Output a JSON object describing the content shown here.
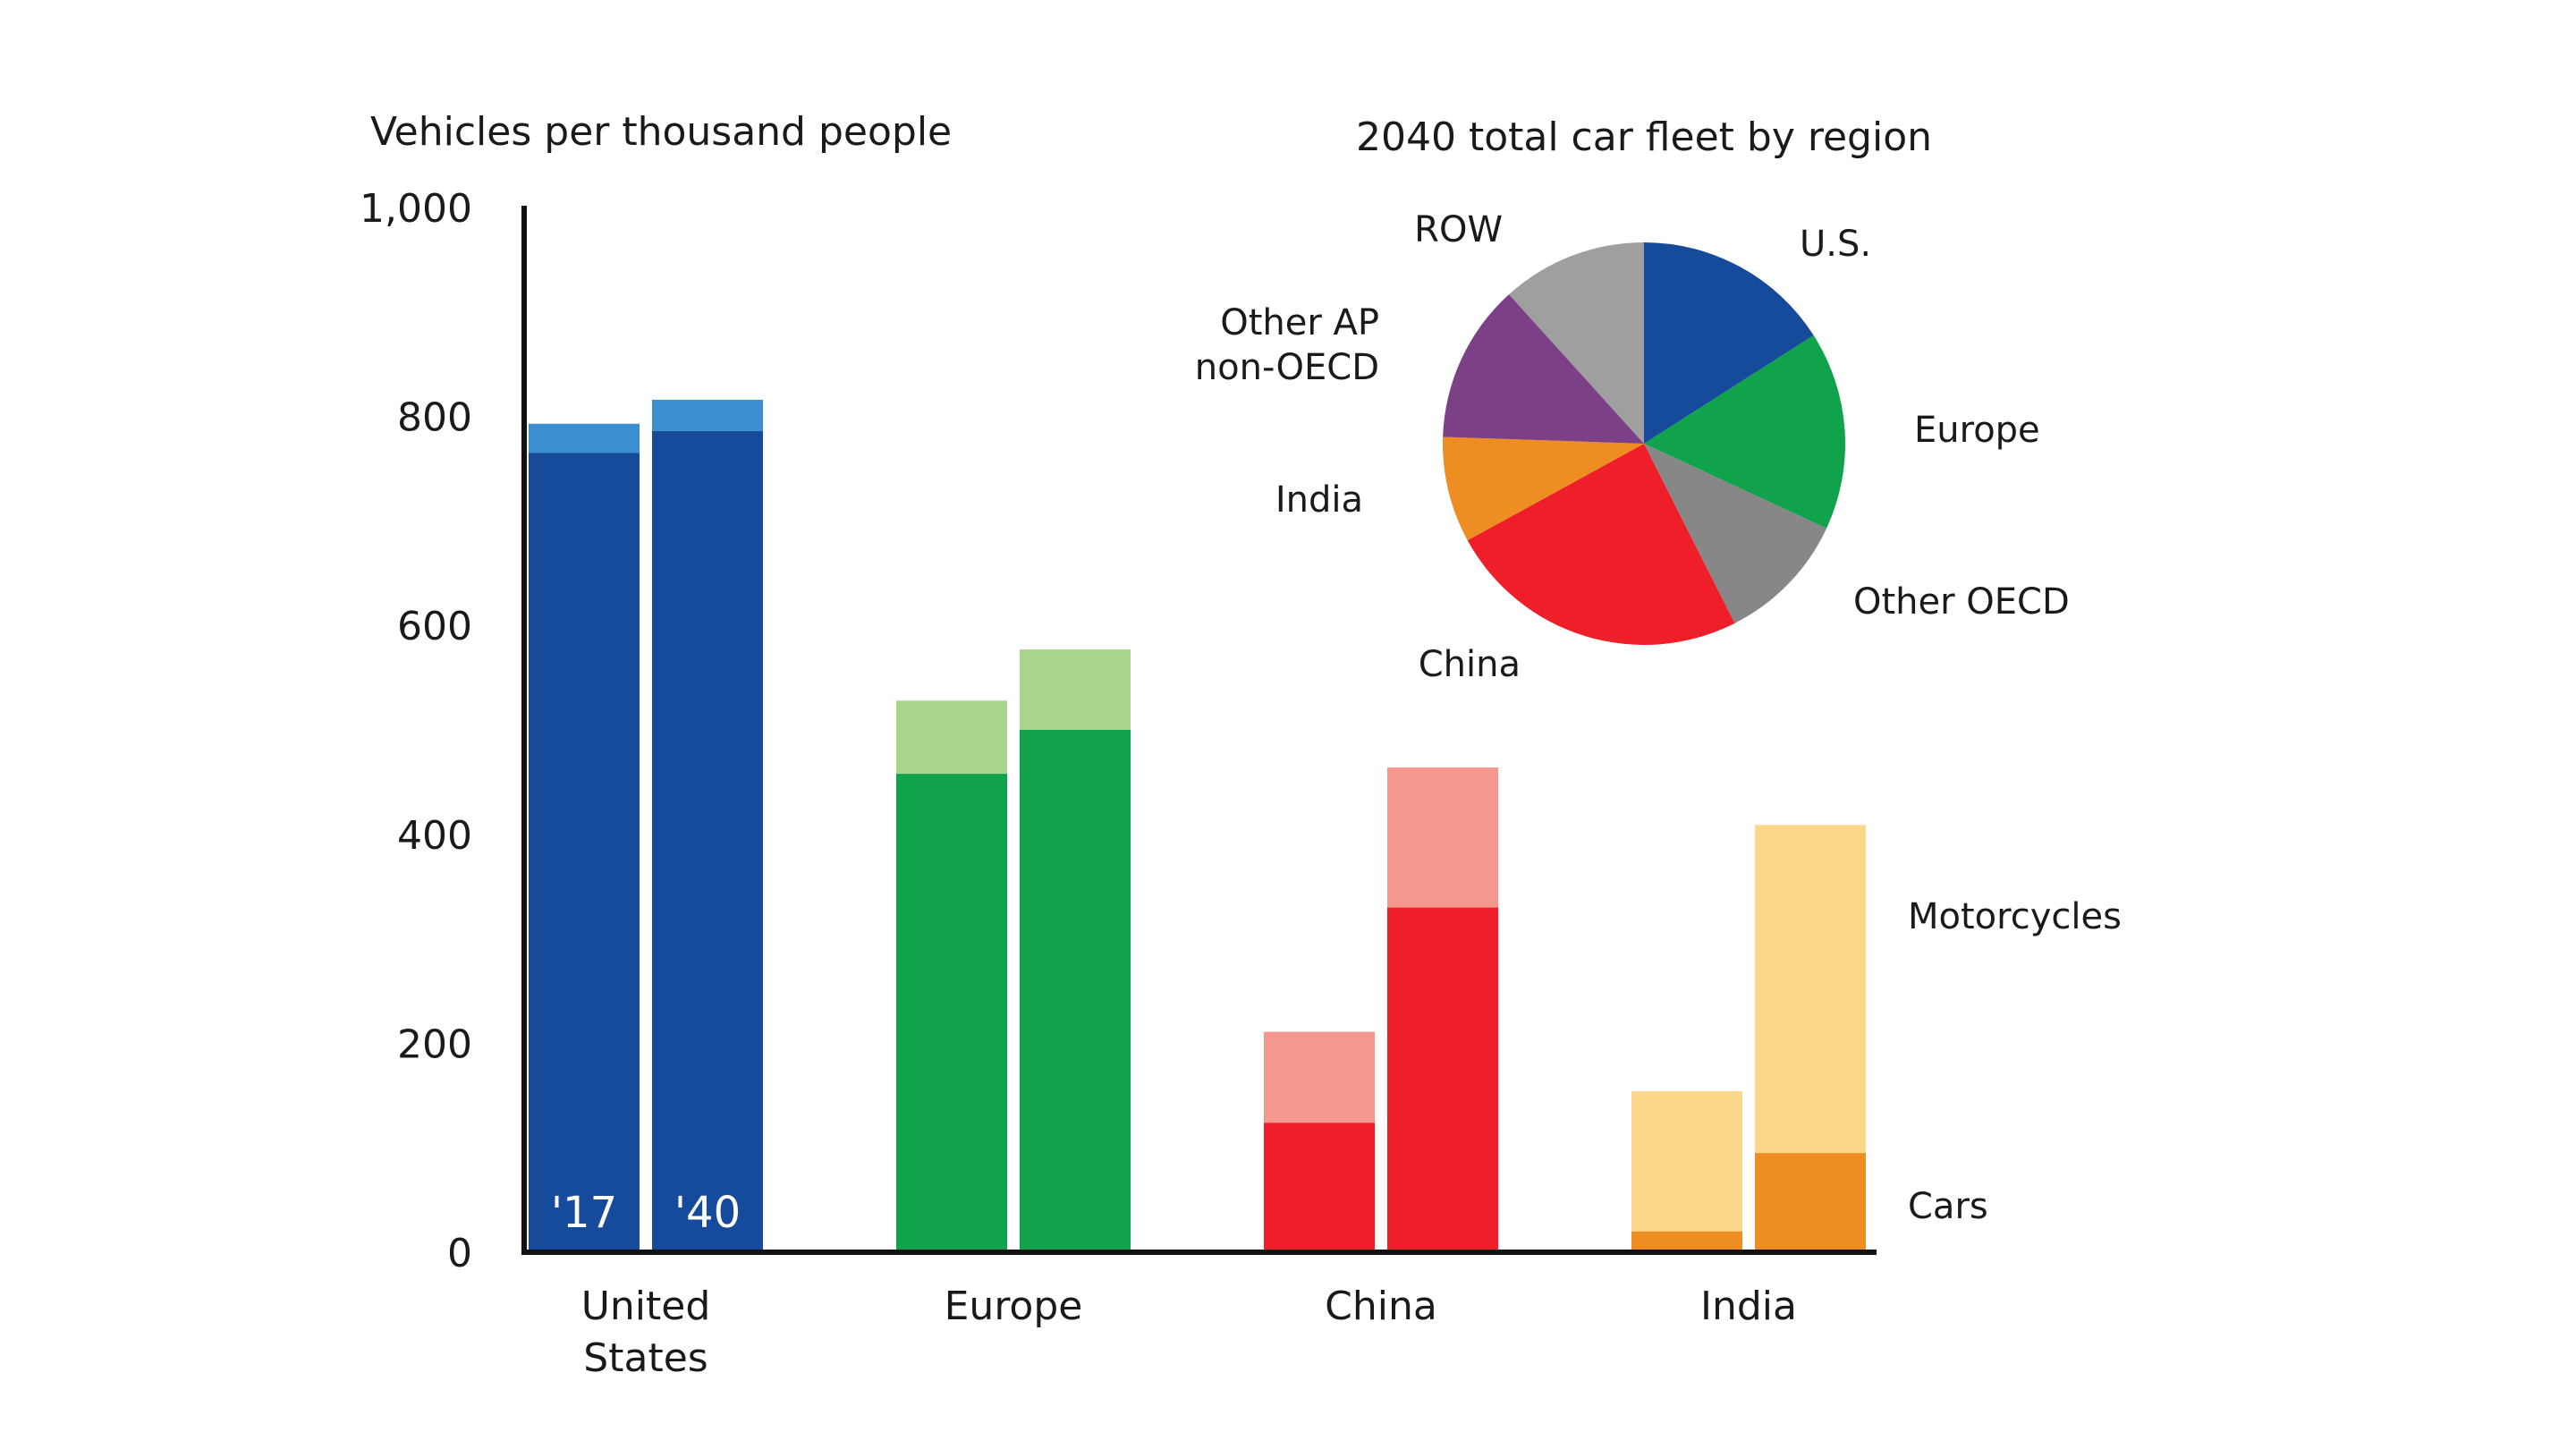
{
  "chart_data": [
    {
      "type": "bar",
      "stacked": true,
      "ylabel": "Vehicles per thousand people",
      "ylim": [
        0,
        1000
      ],
      "yticks": [
        0,
        200,
        400,
        600,
        800,
        1000
      ],
      "ytick_labels": [
        "0",
        "200",
        "400",
        "600",
        "800",
        "1,000"
      ],
      "year_labels": [
        "'17",
        "'40"
      ],
      "series_labels": {
        "motorcycles": "Motorcycles",
        "cars": "Cars"
      },
      "groups": [
        {
          "name": "United States",
          "label_lines": [
            "United",
            "States"
          ],
          "color_cars": "#164a9b",
          "color_moto": "#3b8fd0",
          "bars": [
            {
              "year": "'17",
              "cars": 765,
              "motorcycles": 28
            },
            {
              "year": "'40",
              "cars": 786,
              "motorcycles": 30
            }
          ]
        },
        {
          "name": "Europe",
          "label_lines": [
            "Europe"
          ],
          "color_cars": "#11a24c",
          "color_moto": "#aad58d",
          "bars": [
            {
              "year": "'17",
              "cars": 458,
              "motorcycles": 70
            },
            {
              "year": "'40",
              "cars": 500,
              "motorcycles": 77
            }
          ]
        },
        {
          "name": "China",
          "label_lines": [
            "China"
          ],
          "color_cars": "#ee1f29",
          "color_moto": "#f5968f",
          "bars": [
            {
              "year": "'17",
              "cars": 124,
              "motorcycles": 87
            },
            {
              "year": "'40",
              "cars": 330,
              "motorcycles": 134
            }
          ]
        },
        {
          "name": "India",
          "label_lines": [
            "India"
          ],
          "color_cars": "#ee8e22",
          "color_moto": "#fcd68b",
          "bars": [
            {
              "year": "'17",
              "cars": 20,
              "motorcycles": 134
            },
            {
              "year": "'40",
              "cars": 95,
              "motorcycles": 314
            }
          ]
        }
      ]
    },
    {
      "type": "pie",
      "title": "2040 total car fleet by region",
      "slices": [
        {
          "label": "U.S.",
          "value": 15,
          "color": "#164a9b"
        },
        {
          "label": "Europe",
          "value": 15,
          "color": "#11a24c"
        },
        {
          "label": "Other OECD",
          "value": 10,
          "color": "#878787"
        },
        {
          "label": "China",
          "value": 23,
          "color": "#ee1f29"
        },
        {
          "label": "India",
          "value": 8,
          "color": "#ee8e22"
        },
        {
          "label": "Other AP non-OECD",
          "label_lines": [
            "Other AP",
            "non-OECD"
          ],
          "value": 12,
          "color": "#7b4086"
        },
        {
          "label": "ROW",
          "value": 11,
          "color": "#9f9f9f"
        }
      ]
    }
  ]
}
